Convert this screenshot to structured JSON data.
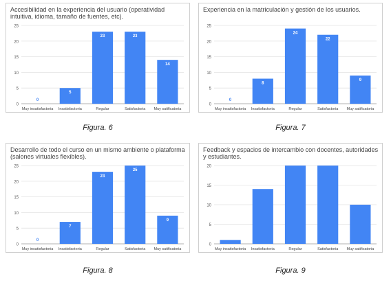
{
  "charts": [
    {
      "caption": "Figura. 6",
      "chart_data": {
        "type": "bar",
        "title": "Accesibilidad en la experiencia del usuario (operatividad intuitiva, idioma, tamaño de fuentes, etc).",
        "categories": [
          "Muy insatisfactoria",
          "Insatisfactoria",
          "Regular",
          "Satisfactoria",
          "Muy satificatoria"
        ],
        "values": [
          0,
          5,
          23,
          23,
          14
        ],
        "data_labels": [
          "0",
          "5",
          "23",
          "23",
          "14"
        ],
        "ylim": [
          0,
          25
        ],
        "yticks": [
          "0",
          "5",
          "10",
          "15",
          "20",
          "25"
        ],
        "bar_color": "#4285f4",
        "label_color": "#ffffff",
        "grid": true
      }
    },
    {
      "caption": "Figura. 7",
      "chart_data": {
        "type": "bar",
        "title": "Experiencia en la matriculación y gestión de los usuarios.",
        "categories": [
          "Muy insatisfactoria",
          "Insatisfactoria",
          "Regular",
          "Satisfactoria",
          "Muy satificatoria"
        ],
        "values": [
          0,
          8,
          24,
          22,
          9
        ],
        "data_labels": [
          "0",
          "8",
          "24",
          "22",
          "9"
        ],
        "ylim": [
          0,
          25
        ],
        "yticks": [
          "0",
          "5",
          "10",
          "15",
          "20",
          "25"
        ],
        "bar_color": "#4285f4",
        "label_color": "#ffffff",
        "grid": true
      }
    },
    {
      "caption": "Figura. 8",
      "chart_data": {
        "type": "bar",
        "title": "Desarrollo de todo el curso en un mismo ambiente o plataforma (salones virtuales flexibles).",
        "categories": [
          "Muy insatisfactoria",
          "Insatisfactoria",
          "Regular",
          "Satisfactoria",
          "Muy satificatoria"
        ],
        "values": [
          0,
          7,
          23,
          25,
          9
        ],
        "data_labels": [
          "0",
          "7",
          "23",
          "25",
          "9"
        ],
        "ylim": [
          0,
          25
        ],
        "yticks": [
          "0",
          "5",
          "10",
          "15",
          "20",
          "25"
        ],
        "bar_color": "#4285f4",
        "label_color": "#ffffff",
        "grid": true
      }
    },
    {
      "caption": "Figura. 9",
      "chart_data": {
        "type": "bar",
        "title": "Feedback y espacios de intercambio con docentes, autoridades y estudiantes.",
        "categories": [
          "Muy insatisfactoria",
          "Insatisfactoria",
          "Regular",
          "Satisfactoria",
          "Muy satificatoria"
        ],
        "values": [
          1,
          14,
          20,
          20,
          10
        ],
        "data_labels": [],
        "ylim": [
          0,
          20
        ],
        "yticks": [
          "0",
          "5",
          "10",
          "15",
          "20"
        ],
        "bar_color": "#4285f4",
        "label_color": "#ffffff",
        "grid": true
      }
    }
  ]
}
